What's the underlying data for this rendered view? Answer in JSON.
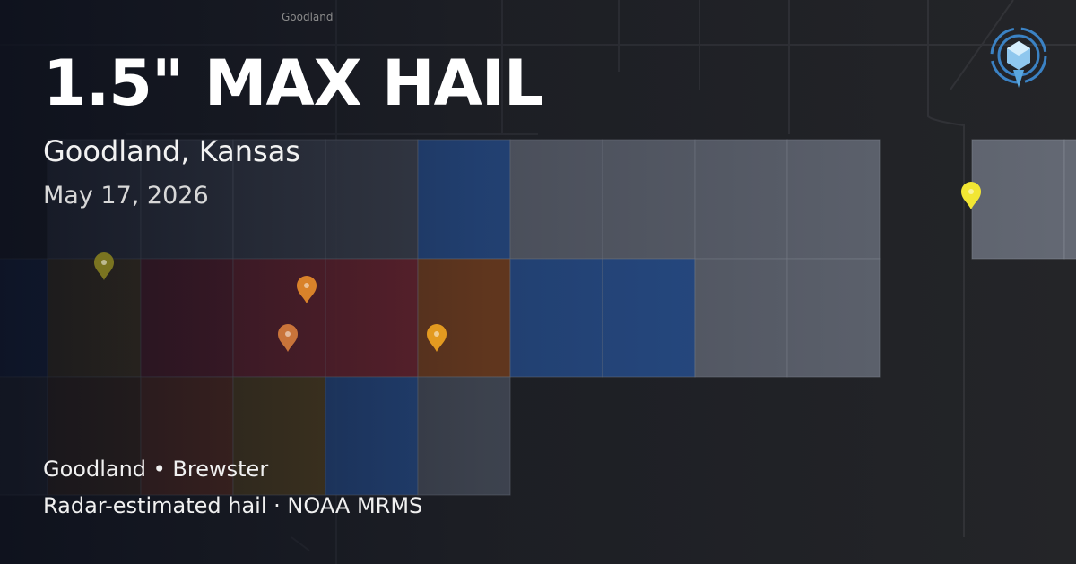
{
  "map_label": "Goodland",
  "header": {
    "title": "1.5\" MAX HAIL",
    "location": "Goodland, Kansas",
    "date": "May 17, 2026"
  },
  "footer": {
    "places": "Goodland • Brewster",
    "source": "Radar-estimated hail · NOAA MRMS"
  }
}
